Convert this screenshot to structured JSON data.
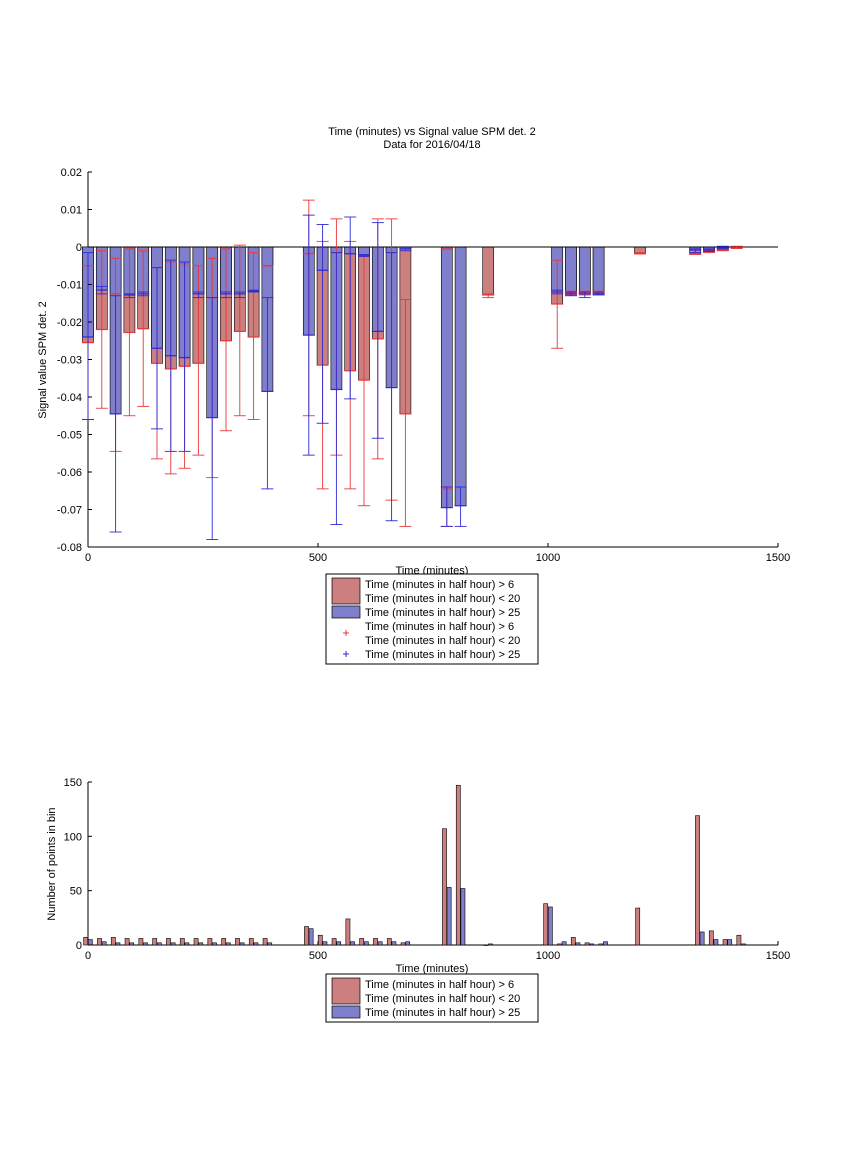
{
  "colors": {
    "bar_red": "#cc7f7f",
    "bar_blue": "#7f7fcc",
    "err_red": "#e8363a",
    "err_blue": "#2b2bd6",
    "axis": "#000000"
  },
  "chart_data": [
    {
      "type": "bar",
      "title": "Time (minutes) vs Signal value SPM det. 2",
      "subtitle": "Data for 2016/04/18",
      "xlabel": "Time (minutes)",
      "ylabel": "Signal value SPM det. 2",
      "xlim": [
        0,
        1500
      ],
      "ylim": [
        -0.08,
        0.02
      ],
      "xticks": [
        0,
        500,
        1000,
        1500
      ],
      "xtick_labels": [
        "0",
        "500",
        "1000",
        "1500"
      ],
      "yticks": [
        -0.08,
        -0.07,
        -0.06,
        -0.05,
        -0.04,
        -0.03,
        -0.02,
        -0.01,
        0,
        0.01,
        0.02
      ],
      "ytick_labels": [
        "-0.08",
        "-0.07",
        "-0.06",
        "-0.05",
        "-0.04",
        "-0.03",
        "-0.02",
        "-0.01",
        "0",
        "0.01",
        "0.02"
      ],
      "grid": false,
      "legend_position": "below",
      "legend": [
        {
          "kind": "patch",
          "color": "bar_red",
          "lines": [
            "Time (minutes in half hour) > 6",
            "Time (minutes in half hour) < 20"
          ]
        },
        {
          "kind": "patch",
          "color": "bar_blue",
          "lines": [
            "Time (minutes in half hour) > 25"
          ]
        },
        {
          "kind": "marker",
          "color": "err_red",
          "lines": [
            "Time (minutes in half hour) > 6",
            "Time (minutes in half hour) < 20"
          ]
        },
        {
          "kind": "marker",
          "color": "err_blue",
          "lines": [
            "Time (minutes in half hour) > 25"
          ]
        }
      ],
      "bar_width": 24,
      "series": [
        {
          "color": "bar_red",
          "err_color": "err_red",
          "x": [
            0,
            30,
            60,
            90,
            120,
            150,
            180,
            210,
            240,
            270,
            300,
            330,
            360,
            390,
            480,
            510,
            540,
            570,
            600,
            630,
            660,
            690,
            780,
            870,
            1020,
            1050,
            1080,
            1110,
            1200,
            1320,
            1350,
            1380,
            1410
          ],
          "values": [
            -0.0255,
            -0.022,
            -0.0125,
            -0.0228,
            -0.0218,
            -0.031,
            -0.0325,
            -0.0318,
            -0.031,
            -0.0135,
            -0.025,
            -0.0225,
            -0.024,
            -0.005,
            -0.0018,
            -0.0315,
            -0.0015,
            -0.033,
            -0.0355,
            -0.0245,
            -0.0015,
            -0.0445,
            -0.0005,
            -0.0128,
            -0.0152,
            -0.0122,
            -0.0122,
            -0.0122,
            -0.0018,
            -0.0018,
            -0.0012,
            -0.0008,
            -0.0002
          ],
          "err_low": [
            -0.046,
            -0.043,
            -0.0545,
            -0.045,
            -0.0425,
            -0.0565,
            -0.0605,
            -0.059,
            -0.0555,
            -0.0615,
            -0.049,
            -0.045,
            -0.046,
            -0.005,
            -0.045,
            -0.0645,
            -0.0555,
            -0.0645,
            -0.069,
            -0.0565,
            -0.0675,
            -0.0745,
            -0.0745,
            -0.0135,
            -0.027,
            -0.0128,
            -0.0128,
            -0.0125,
            -0.0018,
            -0.002,
            -0.0015,
            -0.001,
            -0.0004
          ],
          "err_high": [
            -0.005,
            -0.001,
            -0.003,
            -0.0005,
            -0.001,
            -0.0055,
            -0.004,
            -0.0045,
            -0.005,
            -0.003,
            -0.0005,
            0.0005,
            -0.0015,
            -0.005,
            0.0125,
            0.0015,
            0.0075,
            0.0015,
            -0.0025,
            0.0075,
            0.0075,
            -0.014,
            -0.0645,
            -0.0125,
            -0.0035,
            -0.0118,
            -0.0118,
            -0.0118,
            -0.0015,
            -0.0015,
            -0.001,
            -0.0005,
            0.0002
          ]
        },
        {
          "color": "bar_blue",
          "err_color": "err_blue",
          "x": [
            0,
            30,
            60,
            90,
            120,
            150,
            180,
            210,
            240,
            270,
            300,
            330,
            360,
            390,
            480,
            510,
            540,
            570,
            600,
            630,
            660,
            690,
            780,
            810,
            1020,
            1050,
            1080,
            1110,
            1320,
            1350,
            1380
          ],
          "values": [
            -0.024,
            -0.0115,
            -0.0445,
            -0.0128,
            -0.0125,
            -0.027,
            -0.029,
            -0.0295,
            -0.0125,
            -0.0455,
            -0.0125,
            -0.0125,
            -0.0118,
            -0.0385,
            -0.0235,
            -0.0062,
            -0.038,
            -0.0018,
            -0.0022,
            -0.0225,
            -0.0375,
            -0.0005,
            -0.0695,
            -0.069,
            -0.012,
            -0.0125,
            -0.0125,
            -0.0125,
            -0.0008,
            -0.0008,
            -0.0002
          ],
          "err_low": [
            -0.046,
            -0.0125,
            -0.076,
            -0.0135,
            -0.013,
            -0.0485,
            -0.0545,
            -0.0545,
            -0.0135,
            -0.078,
            -0.0135,
            -0.0135,
            -0.012,
            -0.0645,
            -0.0555,
            -0.047,
            -0.074,
            -0.0405,
            -0.0025,
            -0.051,
            -0.073,
            -0.001,
            -0.0745,
            -0.0745,
            -0.0125,
            -0.013,
            -0.0135,
            -0.0128,
            -0.0015,
            -0.0012,
            -0.0005
          ],
          "err_high": [
            -0.0015,
            -0.0105,
            -0.013,
            -0.0125,
            -0.012,
            -0.0055,
            -0.0035,
            -0.004,
            -0.012,
            -0.0135,
            -0.012,
            -0.012,
            -0.0115,
            -0.0135,
            0.0085,
            0.006,
            -0.0015,
            0.008,
            -0.002,
            0.0065,
            -0.0015,
            -0.0005,
            -0.064,
            -0.064,
            -0.0115,
            -0.012,
            -0.012,
            -0.012,
            -0.0005,
            -0.0005,
            0.0002
          ]
        }
      ]
    },
    {
      "type": "bar",
      "title": "",
      "xlabel": "Time (minutes)",
      "ylabel": "Number of points in bin",
      "xlim": [
        0,
        1500
      ],
      "ylim": [
        0,
        150
      ],
      "xticks": [
        0,
        500,
        1000,
        1500
      ],
      "xtick_labels": [
        "0",
        "500",
        "1000",
        "1500"
      ],
      "yticks": [
        0,
        50,
        100,
        150
      ],
      "ytick_labels": [
        "0",
        "50",
        "100",
        "150"
      ],
      "grid": false,
      "legend_position": "below",
      "legend": [
        {
          "kind": "patch",
          "color": "bar_red",
          "lines": [
            "Time (minutes in half hour) > 6",
            "Time (minutes in half hour) < 20"
          ]
        },
        {
          "kind": "patch",
          "color": "bar_blue",
          "lines": [
            "Time (minutes in half hour) > 25"
          ]
        }
      ],
      "bar_width": 9,
      "series": [
        {
          "color": "bar_red",
          "offset": -5,
          "x": [
            0,
            30,
            60,
            90,
            120,
            150,
            180,
            210,
            240,
            270,
            300,
            330,
            360,
            390,
            480,
            510,
            540,
            570,
            600,
            630,
            660,
            690,
            780,
            810,
            870,
            1000,
            1030,
            1060,
            1090,
            1120,
            1200,
            1330,
            1360,
            1390,
            1420
          ],
          "values": [
            7,
            6,
            7,
            6,
            6,
            6,
            6,
            6,
            6,
            6,
            6,
            6,
            6,
            6,
            17,
            9,
            6,
            24,
            6,
            6,
            6,
            2,
            107,
            147,
            0,
            38,
            1,
            7,
            2,
            1,
            34,
            119,
            13,
            5,
            9
          ]
        },
        {
          "color": "bar_blue",
          "offset": 5,
          "x": [
            0,
            30,
            60,
            90,
            120,
            150,
            180,
            210,
            240,
            270,
            300,
            330,
            360,
            390,
            480,
            510,
            540,
            570,
            600,
            630,
            660,
            690,
            780,
            810,
            870,
            1000,
            1030,
            1060,
            1090,
            1120,
            1330,
            1360,
            1390,
            1420
          ],
          "values": [
            5,
            3,
            2,
            2,
            2,
            2,
            2,
            2,
            2,
            2,
            2,
            2,
            2,
            2,
            15,
            3,
            3,
            3,
            3,
            3,
            3,
            3,
            53,
            52,
            1,
            35,
            3,
            2,
            1,
            3,
            12,
            5,
            5,
            1
          ]
        }
      ]
    }
  ]
}
